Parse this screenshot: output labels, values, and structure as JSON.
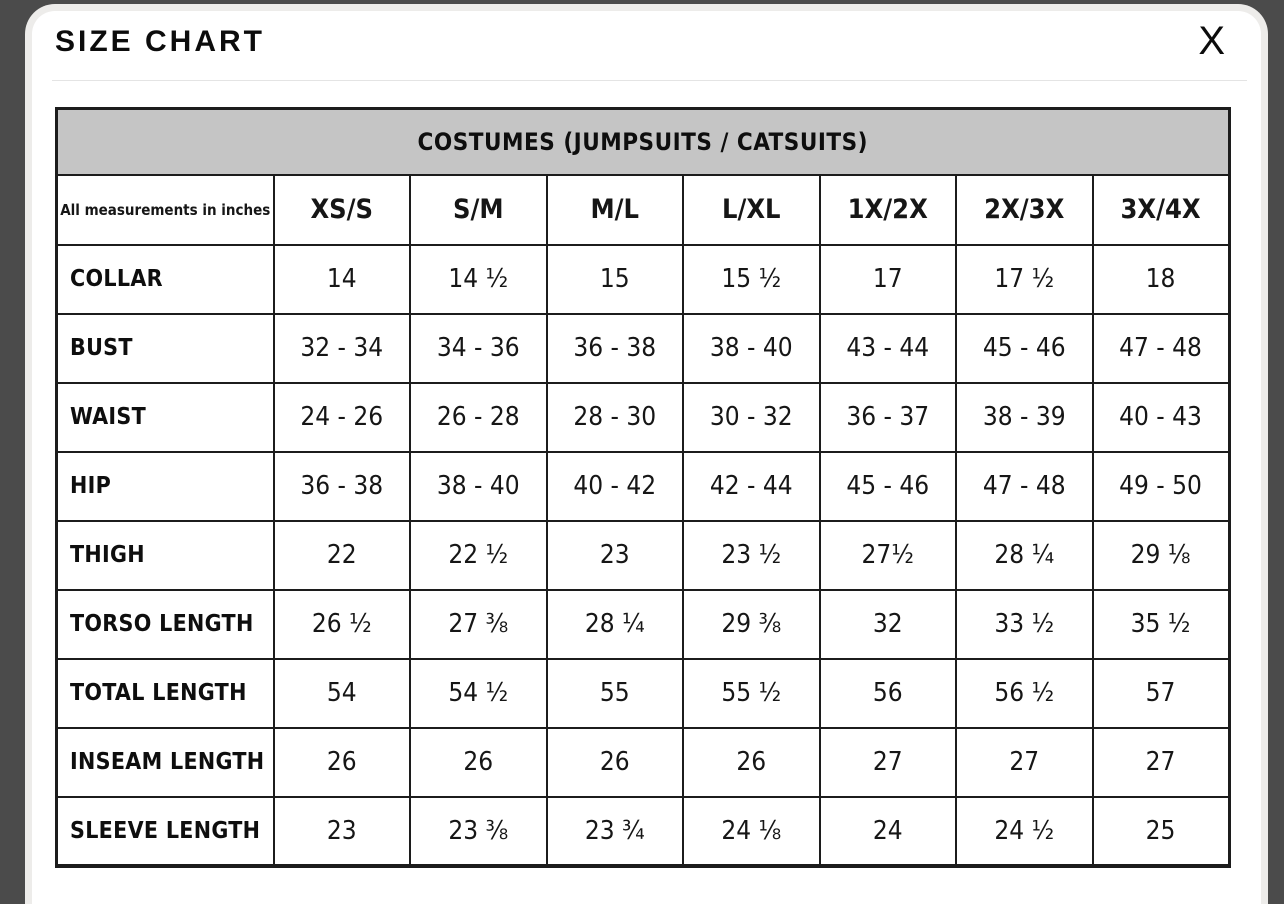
{
  "modal": {
    "title": "SIZE CHART",
    "close_label": "X"
  },
  "table": {
    "caption": "COSTUMES (JUMPSUITS / CATSUITS)",
    "corner_note": "All measurements in inches",
    "size_columns": [
      "XS/S",
      "S/M",
      "M/L",
      "L/XL",
      "1X/2X",
      "2X/3X",
      "3X/4X"
    ],
    "rows": [
      {
        "label": "COLLAR",
        "values": [
          "14",
          "14 ½",
          "15",
          "15 ½",
          "17",
          "17 ½",
          "18"
        ]
      },
      {
        "label": "BUST",
        "values": [
          "32 - 34",
          "34 - 36",
          "36 - 38",
          "38 - 40",
          "43 - 44",
          "45 - 46",
          "47 - 48"
        ]
      },
      {
        "label": "WAIST",
        "values": [
          "24 - 26",
          "26 - 28",
          "28 - 30",
          "30 - 32",
          "36 - 37",
          "38 - 39",
          "40 - 43"
        ]
      },
      {
        "label": "HIP",
        "values": [
          "36 - 38",
          "38 - 40",
          "40 - 42",
          "42 - 44",
          "45 - 46",
          "47 - 48",
          "49 - 50"
        ]
      },
      {
        "label": "THIGH",
        "values": [
          "22",
          "22 ½",
          "23",
          "23 ½",
          "27½",
          "28 ¼",
          "29 ⅛"
        ]
      },
      {
        "label": "TORSO LENGTH",
        "values": [
          "26 ½",
          "27 ⅜",
          "28 ¼",
          "29 ⅜",
          "32",
          "33 ½",
          "35 ½"
        ]
      },
      {
        "label": "TOTAL LENGTH",
        "values": [
          "54",
          "54 ½",
          "55",
          "55 ½",
          "56",
          "56 ½",
          "57"
        ]
      },
      {
        "label": "INSEAM LENGTH",
        "values": [
          "26",
          "26",
          "26",
          "26",
          "27",
          "27",
          "27"
        ]
      },
      {
        "label": "SLEEVE LENGTH",
        "values": [
          "23",
          "23 ⅜",
          "23 ¾",
          "24 ⅛",
          "24",
          "24 ½",
          "25"
        ]
      }
    ]
  },
  "colors": {
    "overlay_background": "#4b4b4b",
    "modal_background": "#ffffff",
    "modal_edge": "#edecea",
    "table_border": "#1c1c1c",
    "caption_band": "#c5c5c5",
    "text": "#111111"
  }
}
